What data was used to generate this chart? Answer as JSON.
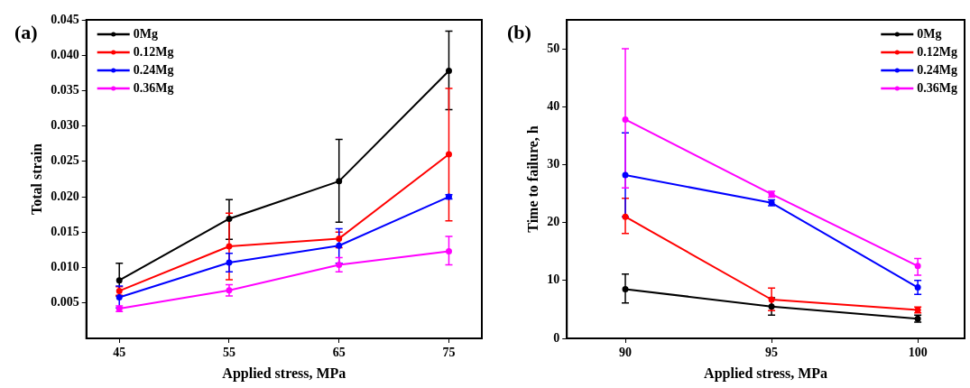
{
  "chart_data": [
    {
      "type": "line",
      "xlabel": "Applied stress, MPa",
      "ylabel": "Total strain",
      "annotations": [
        "(a)"
      ],
      "x": [
        45,
        55,
        65,
        75
      ],
      "xlim": [
        42,
        78
      ],
      "xticks": [
        45,
        55,
        65,
        75
      ],
      "ylim": [
        0,
        0.045
      ],
      "yticks": [
        {
          "value": 0.005,
          "label": "0.005"
        },
        {
          "value": 0.01,
          "label": "0.010"
        },
        {
          "value": 0.015,
          "label": "0.015"
        },
        {
          "value": 0.02,
          "label": "0.020"
        },
        {
          "value": 0.025,
          "label": "0.025"
        },
        {
          "value": 0.03,
          "label": "0.030"
        },
        {
          "value": 0.035,
          "label": "0.035"
        },
        {
          "value": 0.04,
          "label": "0.040"
        },
        {
          "value": 0.045,
          "label": "0.045"
        }
      ],
      "grid": false,
      "legend": "top left",
      "marker": "circle",
      "line_style": "solid",
      "series": [
        {
          "name": "0Mg",
          "color": "#000000",
          "values": [
            0.0082,
            0.0169,
            0.0222,
            0.0378
          ],
          "errors": [
            [
              0.006,
              0.0106
            ],
            [
              0.014,
              0.0196
            ],
            [
              0.0164,
              0.0281
            ],
            [
              0.0323,
              0.0434
            ]
          ]
        },
        {
          "name": "0.12Mg",
          "color": "#ff0000",
          "values": [
            0.0067,
            0.013,
            0.0141,
            0.026
          ],
          "errors": [
            [
              0.0061,
              0.0073
            ],
            [
              0.0083,
              0.0177
            ],
            [
              0.0128,
              0.015
            ],
            [
              0.0166,
              0.0353
            ]
          ]
        },
        {
          "name": "0.24Mg",
          "color": "#0000ff",
          "values": [
            0.0058,
            0.0107,
            0.0131,
            0.02
          ],
          "errors": [
            [
              0.0043,
              0.0074
            ],
            [
              0.0094,
              0.012
            ],
            [
              0.0106,
              0.0155
            ],
            [
              0.0197,
              0.0203
            ]
          ]
        },
        {
          "name": "0.36Mg",
          "color": "#ff00ff",
          "values": [
            0.0042,
            0.0068,
            0.0104,
            0.0123
          ],
          "errors": [
            [
              0.0038,
              0.0046
            ],
            [
              0.006,
              0.0076
            ],
            [
              0.0094,
              0.0114
            ],
            [
              0.0104,
              0.0144
            ]
          ]
        }
      ]
    },
    {
      "type": "line",
      "xlabel": "Applied stress, MPa",
      "ylabel": "Time to failure, h",
      "annotations": [
        "(b)"
      ],
      "x": [
        90,
        95,
        100
      ],
      "xlim": [
        88,
        101.6
      ],
      "xticks": [
        90,
        95,
        100
      ],
      "ylim": [
        0,
        55
      ],
      "yticks": [
        0,
        10,
        20,
        30,
        40,
        50
      ],
      "grid": false,
      "legend": "top right",
      "marker": "circle",
      "line_style": "solid",
      "series": [
        {
          "name": "0Mg",
          "color": "#000000",
          "values": [
            8.5,
            5.5,
            3.4
          ],
          "errors": [
            [
              6.1,
              11.1
            ],
            [
              4.0,
              7.0
            ],
            [
              2.8,
              4.0
            ]
          ]
        },
        {
          "name": "0.12Mg",
          "color": "#ff0000",
          "values": [
            21.0,
            6.7,
            4.9
          ],
          "errors": [
            [
              18.1,
              24.2
            ],
            [
              4.8,
              8.7
            ],
            [
              4.4,
              5.4
            ]
          ]
        },
        {
          "name": "0.24Mg",
          "color": "#0000ff",
          "values": [
            28.2,
            23.4,
            8.8
          ],
          "errors": [
            [
              21.0,
              35.5
            ],
            [
              22.9,
              23.9
            ],
            [
              7.6,
              10.0
            ]
          ]
        },
        {
          "name": "0.36Mg",
          "color": "#ff00ff",
          "values": [
            37.8,
            24.9,
            12.5
          ],
          "errors": [
            [
              26.0,
              50.0
            ],
            [
              24.4,
              25.4
            ],
            [
              10.9,
              13.8
            ]
          ]
        }
      ]
    }
  ]
}
